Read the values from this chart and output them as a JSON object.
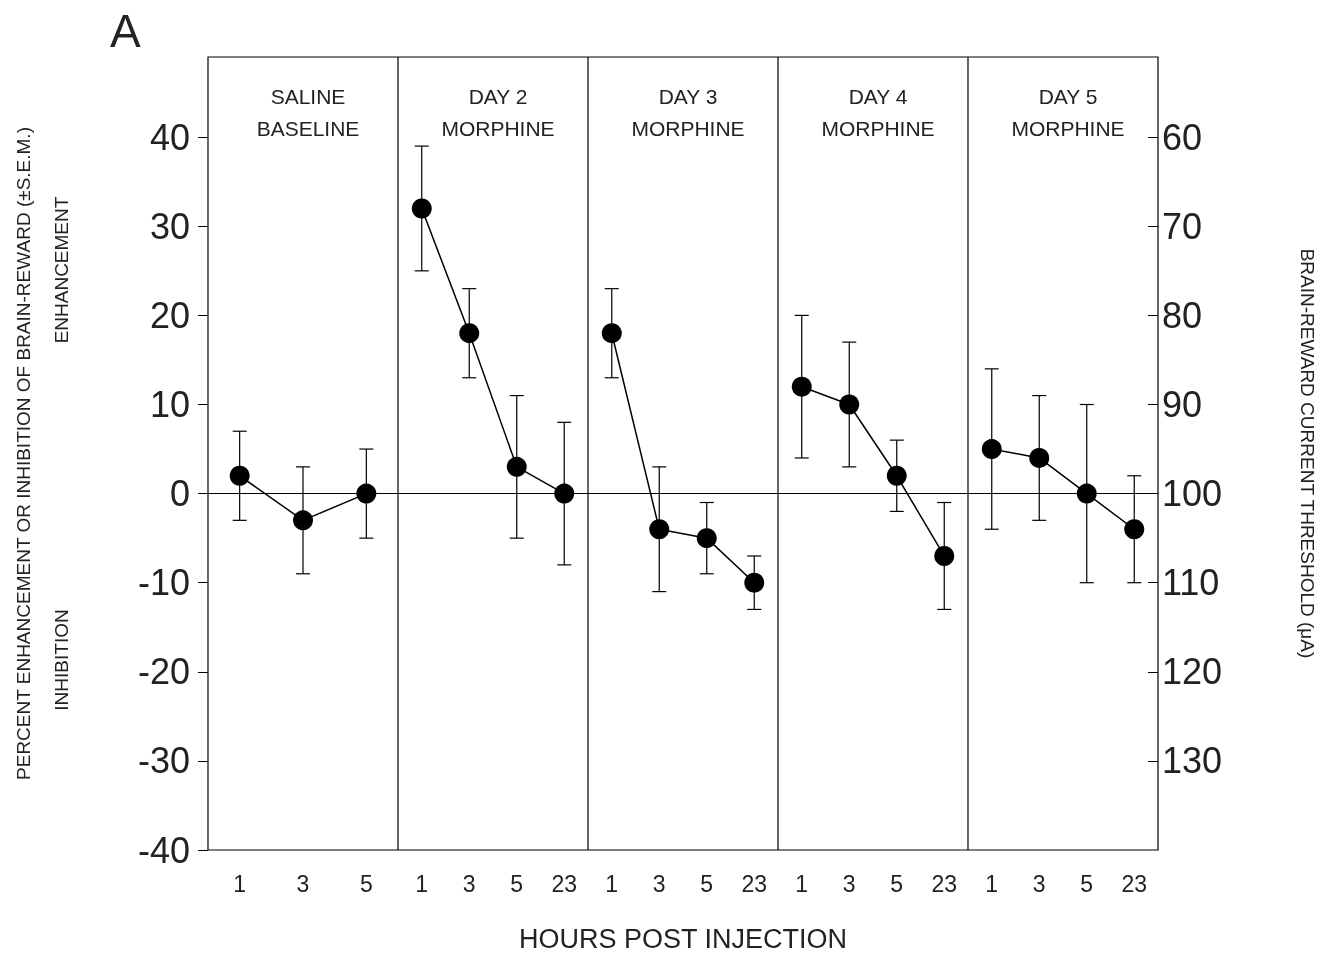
{
  "chart_data": [
    {
      "type": "line",
      "title": "SALINE\nBASELINE",
      "ylabel": "PERCENT ENHANCEMENT OR INHIBITION OF BRAIN-REWARD (±S.E.M.)",
      "annotations": [
        "A",
        "ENHANCEMENT",
        "INHIBITION"
      ],
      "categories": [
        "1",
        "3",
        "5"
      ],
      "ylim": [
        -40,
        49
      ],
      "yticks": [
        -40,
        -30,
        -20,
        -10,
        0,
        10,
        20,
        30,
        40
      ],
      "marker": "circle",
      "ref_lines": [
        {
          "axis": "y",
          "value": 0
        }
      ],
      "series": [
        {
          "color": "#000000",
          "values": [
            2,
            -3,
            0
          ],
          "errors": [
            5,
            6,
            5
          ]
        }
      ]
    },
    {
      "type": "line",
      "title": "DAY 2\nMORPHINE",
      "categories": [
        "1",
        "3",
        "5",
        "23"
      ],
      "ylim": [
        -40,
        49
      ],
      "tick_labels": "x",
      "marker": "circle",
      "ref_lines": [
        {
          "axis": "y",
          "value": 0
        }
      ],
      "series": [
        {
          "color": "#000000",
          "values": [
            32,
            18,
            3,
            0
          ],
          "errors": [
            7,
            5,
            8,
            8
          ]
        }
      ]
    },
    {
      "type": "line",
      "title": "DAY 3\nMORPHINE",
      "xlabel": "HOURS POST INJECTION",
      "categories": [
        "1",
        "3",
        "5",
        "23"
      ],
      "ylim": [
        -40,
        49
      ],
      "tick_labels": "x",
      "marker": "circle",
      "ref_lines": [
        {
          "axis": "y",
          "value": 0
        }
      ],
      "series": [
        {
          "color": "#000000",
          "values": [
            18,
            -4,
            -5,
            -10
          ],
          "errors": [
            5,
            7,
            4,
            3
          ]
        }
      ]
    },
    {
      "type": "line",
      "title": "DAY 4\nMORPHINE",
      "categories": [
        "1",
        "3",
        "5",
        "23"
      ],
      "ylim": [
        -40,
        49
      ],
      "tick_labels": "x",
      "marker": "circle",
      "ref_lines": [
        {
          "axis": "y",
          "value": 0
        }
      ],
      "series": [
        {
          "color": "#000000",
          "values": [
            12,
            10,
            2,
            -7
          ],
          "errors": [
            8,
            7,
            4,
            6
          ]
        }
      ]
    },
    {
      "type": "line",
      "title": "DAY 5\nMORPHINE",
      "y2label": "BRAIN-REWARD CURRENT THRESHOLD (μA)",
      "categories": [
        "1",
        "3",
        "5",
        "23"
      ],
      "ylim": [
        -40,
        49
      ],
      "y2lim": [
        140,
        51
      ],
      "y2ticks": [
        60,
        70,
        80,
        90,
        100,
        110,
        120,
        130
      ],
      "marker": "circle",
      "ref_lines": [
        {
          "axis": "y",
          "value": 0
        }
      ],
      "series": [
        {
          "color": "#000000",
          "values": [
            5,
            4,
            0,
            -4
          ],
          "errors": [
            9,
            7,
            10,
            6
          ]
        }
      ]
    }
  ]
}
